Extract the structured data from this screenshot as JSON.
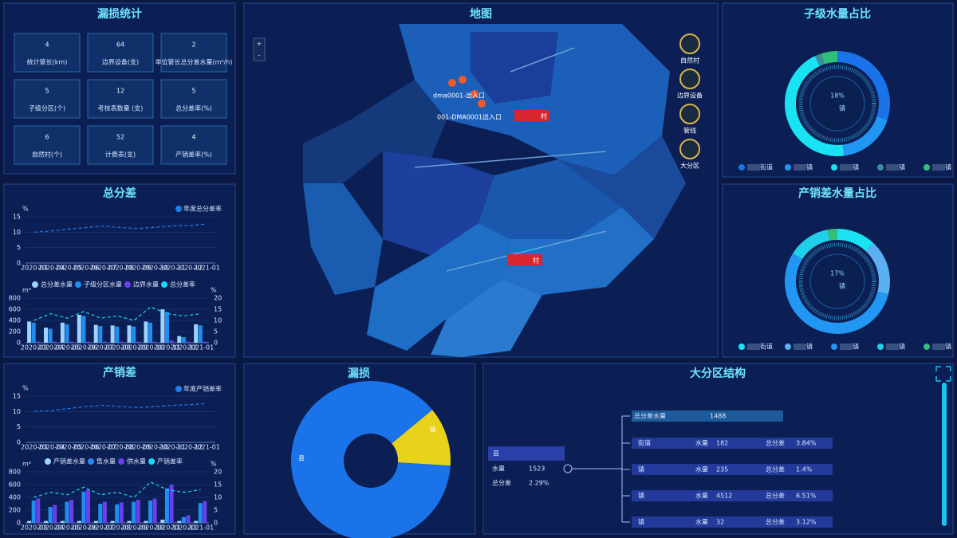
{
  "stats": {
    "title": "漏损统计",
    "items": [
      {
        "value": "4",
        "label": "统计管长(km)"
      },
      {
        "value": "64",
        "label": "边界设备(支)"
      },
      {
        "value": "2",
        "label": "单位管长总分差水量(m³/h)"
      },
      {
        "value": "5",
        "label": "子级分区(个)"
      },
      {
        "value": "12",
        "label": "考核表数量 (支)"
      },
      {
        "value": "5",
        "label": "总分差率(%)"
      },
      {
        "value": "6",
        "label": "自然村(个)"
      },
      {
        "value": "52",
        "label": "计费表(支)"
      },
      {
        "value": "4",
        "label": "产销差率(%)"
      }
    ]
  },
  "map": {
    "title": "地图",
    "zoom_in": "+",
    "zoom_out": "-",
    "legend": [
      "自然村",
      "边界设备",
      "管线",
      "大分区"
    ],
    "markers": [
      "dma0001-出入口",
      "001-DMA0001出入口",
      "村",
      "村"
    ]
  },
  "tree": {
    "title": "大分区结构",
    "root": {
      "name": "县",
      "rows": [
        [
          "水量",
          "1523"
        ],
        [
          "总分差",
          "2.29%"
        ]
      ]
    },
    "total": [
      "总分差水量",
      "1488"
    ],
    "children": [
      [
        "街道",
        "水量",
        "182",
        "总分差",
        "3.84%"
      ],
      [
        "镇",
        "水量",
        "235",
        "总分差",
        "1.4%"
      ],
      [
        "镇",
        "水量",
        "4512",
        "总分差",
        "6.51%"
      ],
      [
        "镇",
        "水量",
        "32",
        "总分差",
        "3.12%"
      ]
    ]
  },
  "chart_data": [
    {
      "type": "line",
      "title": "总分差",
      "y_label": "%",
      "categories": [
        "2020-03",
        "2020-04",
        "2020-05",
        "2020-06",
        "2020-07",
        "2020-08",
        "2020-09",
        "2020-10",
        "2020-11",
        "2020-12",
        "2021-01"
      ],
      "series": [
        {
          "name": "年度总分差率",
          "color": "#1e7ff0",
          "values": [
            10,
            10.4,
            11,
            11.5,
            12,
            11.5,
            11.2,
            11.6,
            12,
            12.2,
            12.6
          ]
        }
      ],
      "ylim": [
        0,
        15
      ],
      "yticks": [
        0,
        5,
        10,
        15
      ]
    },
    {
      "type": "bar",
      "y_label": "m³",
      "y2_label": "%",
      "categories": [
        "2020-03",
        "2020-04",
        "2020-05",
        "2020-06",
        "2020-07",
        "2020-08",
        "2020-09",
        "2020-10",
        "2020-11",
        "2020-12",
        "2021-01"
      ],
      "series": [
        {
          "name": "总分差水量",
          "color": "#9fd3ff",
          "values": [
            380,
            270,
            360,
            500,
            320,
            310,
            310,
            380,
            600,
            120,
            330
          ]
        },
        {
          "name": "子级分区水量",
          "color": "#1e8ff0",
          "values": [
            360,
            250,
            330,
            480,
            300,
            290,
            290,
            360,
            550,
            100,
            310
          ]
        },
        {
          "name": "边界水量",
          "color": "#6a3ff0",
          "values": [
            20,
            20,
            20,
            20,
            20,
            20,
            20,
            20,
            40,
            20,
            20
          ]
        },
        {
          "name": "总分差率",
          "color": "#19d7f5",
          "type": "line",
          "axis": "y2",
          "values": [
            10,
            13,
            11,
            14,
            11,
            12,
            10,
            16,
            13,
            12,
            13
          ]
        }
      ],
      "ylim": [
        0,
        800
      ],
      "yticks": [
        0,
        200,
        400,
        600,
        800
      ],
      "y2lim": [
        0,
        20
      ],
      "y2ticks": [
        0,
        5,
        10,
        15,
        20
      ]
    },
    {
      "type": "line",
      "title": "产销差",
      "y_label": "%",
      "categories": [
        "2020-03",
        "2020-04",
        "2020-05",
        "2020-06",
        "2020-07",
        "2020-08",
        "2020-09",
        "2020-10",
        "2020-11",
        "2020-12",
        "2021-01"
      ],
      "series": [
        {
          "name": "年度产销差率",
          "color": "#1e7ff0",
          "values": [
            10,
            10.3,
            11,
            11.6,
            12,
            11.6,
            11.3,
            11.6,
            12,
            12.2,
            12.6
          ]
        }
      ],
      "ylim": [
        0,
        15
      ],
      "yticks": [
        0,
        5,
        10,
        15
      ]
    },
    {
      "type": "bar",
      "y_label": "m³",
      "y2_label": "%",
      "categories": [
        "2020-03",
        "2020-04",
        "2020-05",
        "2020-06",
        "2020-07",
        "2020-08",
        "2020-09",
        "2020-10",
        "2020-11",
        "2020-12",
        "2021-01"
      ],
      "series": [
        {
          "name": "产销差水量",
          "color": "#9fd3ff",
          "values": [
            30,
            30,
            30,
            30,
            30,
            30,
            30,
            30,
            50,
            30,
            30
          ]
        },
        {
          "name": "售水量",
          "color": "#1e8ff0",
          "values": [
            350,
            250,
            330,
            490,
            300,
            290,
            330,
            350,
            540,
            90,
            310
          ]
        },
        {
          "name": "供水量",
          "color": "#6a3ff0",
          "values": [
            380,
            280,
            360,
            520,
            330,
            320,
            360,
            380,
            600,
            120,
            340
          ]
        },
        {
          "name": "产销差率",
          "color": "#19d7f5",
          "type": "line",
          "axis": "y2",
          "values": [
            10,
            12,
            11,
            14,
            11,
            12,
            10,
            16,
            13,
            12,
            13
          ]
        }
      ],
      "ylim": [
        0,
        800
      ],
      "yticks": [
        0,
        200,
        400,
        600,
        800
      ],
      "y2lim": [
        0,
        20
      ],
      "y2ticks": [
        0,
        5,
        10,
        15,
        20
      ]
    },
    {
      "type": "donut",
      "title": "子级水量占比",
      "center_label": "18%",
      "center_name": "镇",
      "categories": [
        "街道",
        "镇",
        "镇",
        "镇",
        "镇"
      ],
      "values": [
        30,
        18,
        45,
        2,
        5
      ],
      "colors": [
        "#1a73e8",
        "#2196f3",
        "#19e3f2",
        "#3a8f9a",
        "#2fbf7a"
      ]
    },
    {
      "type": "donut",
      "title": "产销差水量占比",
      "center_label": "17%",
      "center_name": "镇",
      "categories": [
        "街道",
        "镇",
        "镇",
        "镇",
        "镇"
      ],
      "values": [
        12,
        17,
        55,
        13,
        3
      ],
      "colors": [
        "#19e3f2",
        "#5ab0f0",
        "#2196f3",
        "#1fd0e8",
        "#2fbf7a"
      ]
    },
    {
      "type": "pie",
      "title": "漏损",
      "categories": [
        "镇",
        "县"
      ],
      "values": [
        12,
        88
      ],
      "colors": [
        "#e8d21c",
        "#1a73e8"
      ]
    }
  ]
}
